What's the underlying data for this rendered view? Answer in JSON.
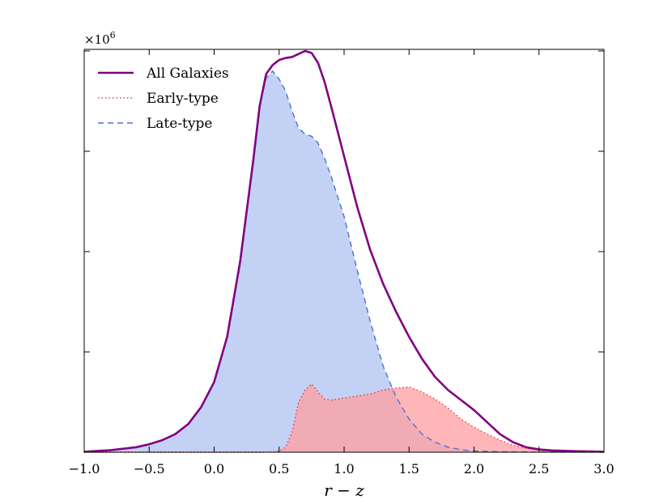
{
  "chart_data": {
    "type": "area",
    "xlabel": "r − z",
    "ylabel": "",
    "xlim": [
      -1.0,
      3.0
    ],
    "ylim": [
      0,
      4.0
    ],
    "y_multiplier": "×10",
    "y_multiplier_exp": "6",
    "xticks": [
      -1.0,
      -0.5,
      0.0,
      0.5,
      1.0,
      1.5,
      2.0,
      2.5,
      3.0
    ],
    "xtick_labels": [
      "−1.0",
      "−0.5",
      "0.0",
      "0.5",
      "1.0",
      "1.5",
      "2.0",
      "2.5",
      "3.0"
    ],
    "yticks": [
      0,
      1,
      2,
      3,
      4
    ],
    "legend_position": "top-left",
    "series": [
      {
        "name": "All Galaxies",
        "style": "solid",
        "color": "#800080",
        "fill": false,
        "x": [
          -1.0,
          -0.8,
          -0.6,
          -0.5,
          -0.4,
          -0.3,
          -0.2,
          -0.1,
          0.0,
          0.1,
          0.2,
          0.3,
          0.35,
          0.4,
          0.45,
          0.5,
          0.55,
          0.6,
          0.65,
          0.7,
          0.75,
          0.8,
          0.85,
          0.9,
          1.0,
          1.1,
          1.2,
          1.3,
          1.4,
          1.5,
          1.6,
          1.7,
          1.8,
          1.9,
          2.0,
          2.1,
          2.2,
          2.3,
          2.4,
          2.5,
          2.6,
          2.8,
          3.0
        ],
        "y": [
          0.005,
          0.02,
          0.05,
          0.08,
          0.12,
          0.18,
          0.28,
          0.45,
          0.7,
          1.15,
          1.9,
          2.9,
          3.45,
          3.77,
          3.86,
          3.91,
          3.93,
          3.94,
          3.97,
          4.0,
          3.98,
          3.88,
          3.69,
          3.45,
          2.95,
          2.45,
          2.02,
          1.68,
          1.4,
          1.15,
          0.93,
          0.75,
          0.62,
          0.52,
          0.42,
          0.3,
          0.18,
          0.1,
          0.05,
          0.028,
          0.018,
          0.01,
          0.005
        ]
      },
      {
        "name": "Early-type",
        "style": "dotted",
        "color": "#e8393a",
        "fill": true,
        "fill_color": "#ff9ea0",
        "x": [
          -1.0,
          0.0,
          0.3,
          0.4,
          0.5,
          0.55,
          0.6,
          0.65,
          0.7,
          0.75,
          0.8,
          0.85,
          0.9,
          1.0,
          1.1,
          1.2,
          1.3,
          1.4,
          1.5,
          1.6,
          1.7,
          1.8,
          1.9,
          2.0,
          2.1,
          2.2,
          2.3,
          2.4,
          2.5,
          2.6,
          2.8,
          3.0
        ],
        "y": [
          0.0,
          0.0,
          0.0,
          0.0,
          0.01,
          0.05,
          0.2,
          0.5,
          0.62,
          0.68,
          0.6,
          0.53,
          0.52,
          0.54,
          0.56,
          0.58,
          0.62,
          0.64,
          0.65,
          0.6,
          0.53,
          0.44,
          0.33,
          0.25,
          0.18,
          0.12,
          0.07,
          0.04,
          0.02,
          0.01,
          0.005,
          0.0
        ]
      },
      {
        "name": "Late-type",
        "style": "dashed",
        "color": "#4a72d4",
        "fill": true,
        "fill_color": "#a9bdf0",
        "x": [
          -1.0,
          -0.8,
          -0.6,
          -0.5,
          -0.4,
          -0.3,
          -0.2,
          -0.1,
          0.0,
          0.1,
          0.2,
          0.3,
          0.35,
          0.4,
          0.45,
          0.5,
          0.55,
          0.6,
          0.65,
          0.7,
          0.75,
          0.8,
          0.85,
          0.9,
          1.0,
          1.1,
          1.2,
          1.3,
          1.4,
          1.5,
          1.6,
          1.7,
          1.8,
          1.9,
          2.0,
          2.2,
          2.4,
          2.6,
          3.0
        ],
        "y": [
          0.005,
          0.02,
          0.05,
          0.08,
          0.12,
          0.18,
          0.28,
          0.45,
          0.7,
          1.15,
          1.9,
          2.9,
          3.45,
          3.73,
          3.8,
          3.72,
          3.6,
          3.4,
          3.23,
          3.17,
          3.15,
          3.08,
          2.93,
          2.75,
          2.35,
          1.82,
          1.31,
          0.86,
          0.55,
          0.33,
          0.18,
          0.1,
          0.05,
          0.025,
          0.012,
          0.005,
          0.002,
          0.001,
          0.0
        ]
      }
    ]
  }
}
